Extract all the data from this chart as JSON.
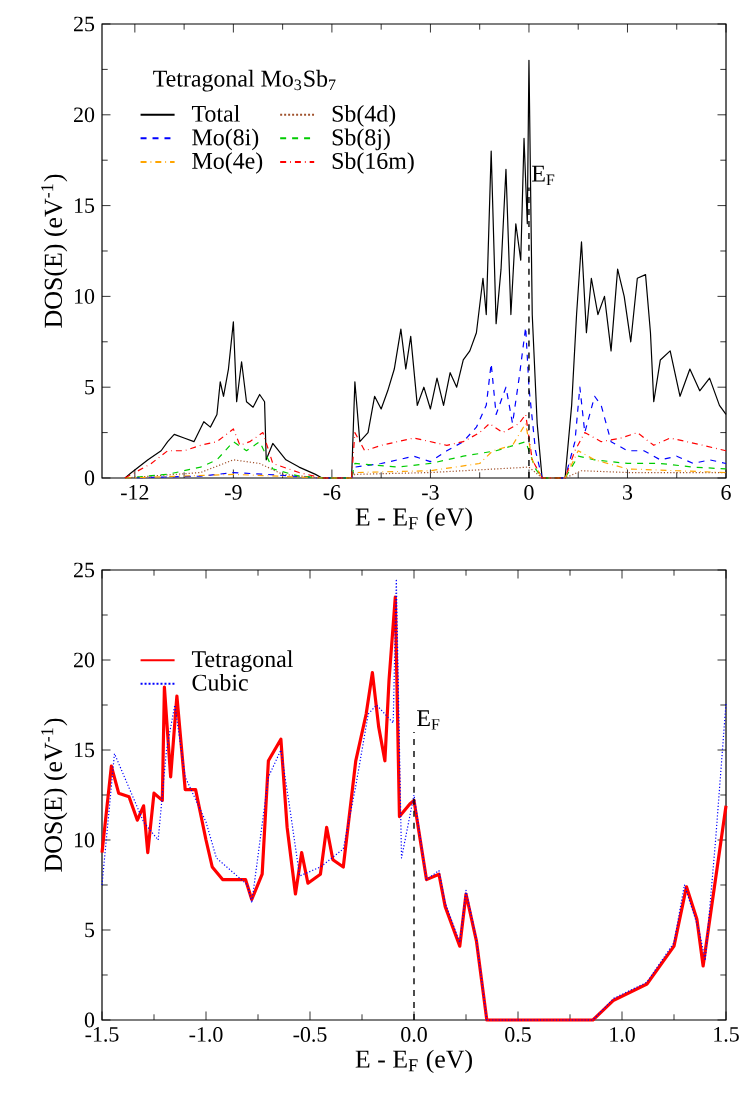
{
  "chart_data": [
    {
      "type": "line",
      "xlabel": "E - E$_{F}$ (eV)",
      "ylabel": "DOS(E) (eV$^{-1}$)",
      "legend_title": "Tetragonal Mo$_{3}$Sb$_{7}$",
      "legend": "top left",
      "xlim": [
        -13,
        6
      ],
      "ylim": [
        0,
        25
      ],
      "xticks": [
        -12,
        -9,
        -6,
        -3,
        0,
        3,
        6
      ],
      "yticks": [
        0,
        5,
        10,
        15,
        20,
        25
      ],
      "ref_lines": [
        {
          "axis": "x",
          "value": 0,
          "label": "E$_{F}$",
          "line_style": "dashed",
          "color": "#000000"
        }
      ],
      "series": [
        {
          "name": "Total",
          "color": "#000000",
          "line_style": "solid",
          "x": [
            -12.3,
            -12.1,
            -11.6,
            -11.2,
            -11.0,
            -10.8,
            -10.5,
            -10.2,
            -9.9,
            -9.7,
            -9.5,
            -9.4,
            -9.3,
            -9.15,
            -9.0,
            -8.9,
            -8.75,
            -8.6,
            -8.4,
            -8.2,
            -8.05,
            -8.0,
            -7.8,
            -7.4,
            -7.0,
            -6.5,
            -6.3,
            -5.4,
            -5.3,
            -5.15,
            -4.9,
            -4.7,
            -4.5,
            -4.3,
            -4.1,
            -3.9,
            -3.75,
            -3.6,
            -3.4,
            -3.2,
            -3.0,
            -2.8,
            -2.6,
            -2.4,
            -2.2,
            -2.0,
            -1.8,
            -1.6,
            -1.4,
            -1.3,
            -1.15,
            -1.0,
            -0.85,
            -0.7,
            -0.55,
            -0.4,
            -0.25,
            -0.15,
            -0.05,
            0.0,
            0.1,
            0.25,
            0.4,
            1.1,
            1.3,
            1.45,
            1.6,
            1.75,
            1.9,
            2.1,
            2.3,
            2.5,
            2.7,
            2.9,
            3.1,
            3.3,
            3.55,
            3.7,
            3.8,
            4.0,
            4.3,
            4.6,
            4.9,
            5.2,
            5.5,
            5.8,
            6.0
          ],
          "values": [
            0,
            0.3,
            1.0,
            1.5,
            2.0,
            2.4,
            2.2,
            2.0,
            3.1,
            2.8,
            3.5,
            5.3,
            4.5,
            6.0,
            8.6,
            4.2,
            6.4,
            4.2,
            3.9,
            4.6,
            4.2,
            1.0,
            1.9,
            1.0,
            0.6,
            0.2,
            0,
            0,
            5.3,
            2.0,
            2.5,
            4.5,
            3.8,
            4.8,
            6.0,
            8.2,
            6.0,
            7.8,
            4.0,
            5.0,
            3.8,
            5.5,
            4.0,
            5.8,
            5.0,
            6.5,
            7.0,
            8.0,
            11.0,
            9.0,
            18.0,
            8.5,
            11.5,
            17.0,
            9.0,
            14.0,
            12.0,
            18.7,
            14.0,
            23.0,
            9.0,
            3.0,
            0,
            0,
            4.0,
            9.0,
            13.0,
            8.0,
            11.0,
            9.0,
            10.0,
            7.0,
            11.5,
            10.0,
            7.5,
            11.0,
            11.2,
            8.0,
            4.2,
            6.5,
            7.0,
            4.5,
            6.0,
            4.8,
            5.5,
            4.0,
            3.5
          ]
        },
        {
          "name": "Sb(4d)",
          "color": "#a0522d",
          "line_style": "dotted",
          "x": [
            -12.3,
            -10,
            -9,
            -8.2,
            -7.5,
            -6.3,
            -5.4,
            -5.3,
            -3,
            -1,
            0,
            0.4,
            1.1,
            1.6,
            3,
            6
          ],
          "values": [
            0,
            0.3,
            1.0,
            0.8,
            0.2,
            0,
            0,
            0.2,
            0.3,
            0.5,
            0.6,
            0,
            0,
            0.4,
            0.3,
            0.3
          ]
        },
        {
          "name": "Mo(8i)",
          "color": "#0000ff",
          "line_style": "dashed",
          "x": [
            -12.3,
            -10,
            -9,
            -8,
            -6.3,
            -5.4,
            -5.3,
            -4.5,
            -4,
            -3.5,
            -3,
            -2.5,
            -2,
            -1.6,
            -1.3,
            -1.15,
            -1.0,
            -0.7,
            -0.5,
            -0.3,
            -0.1,
            0.0,
            0.2,
            0.4,
            1.1,
            1.4,
            1.55,
            1.7,
            2.0,
            2.2,
            2.5,
            3.0,
            3.5,
            4.0,
            4.5,
            5.0,
            5.5,
            6.0
          ],
          "values": [
            0,
            0.1,
            0.3,
            0.2,
            0,
            0,
            0.6,
            0.8,
            1.0,
            1.2,
            0.9,
            1.5,
            2.0,
            2.8,
            4.0,
            6.3,
            3.5,
            5.0,
            3.0,
            5.5,
            8.3,
            5.0,
            1.5,
            0,
            0,
            2.0,
            5.0,
            2.5,
            4.5,
            4.0,
            2.0,
            1.5,
            1.5,
            1.0,
            1.2,
            0.8,
            1.0,
            0.8
          ]
        },
        {
          "name": "Sb(8j)",
          "color": "#00cc00",
          "line_style": "dashed",
          "x": [
            -12.3,
            -11,
            -10,
            -9.5,
            -9,
            -8.6,
            -8.2,
            -7.8,
            -7,
            -6.3,
            -5.4,
            -5.3,
            -4,
            -3,
            -2,
            -1,
            -0.1,
            0.2,
            0.4,
            1.1,
            1.5,
            2,
            3,
            4,
            5,
            6
          ],
          "values": [
            0,
            0.2,
            0.6,
            1.0,
            2.0,
            1.5,
            2.0,
            0.5,
            0.1,
            0,
            0,
            0.8,
            0.6,
            0.8,
            1.2,
            1.5,
            2.0,
            0.5,
            0,
            0,
            1.2,
            1.0,
            0.8,
            0.8,
            0.6,
            0.5
          ]
        },
        {
          "name": "Mo(4e)",
          "color": "#ffa500",
          "line_style": "dashdot",
          "x": [
            -12.3,
            -9,
            -6.3,
            -5.4,
            -5.3,
            -3,
            -1.5,
            -1.1,
            -0.5,
            -0.1,
            0.1,
            0.4,
            1.1,
            1.5,
            2,
            3,
            4.5,
            6
          ],
          "values": [
            0,
            0.2,
            0,
            0,
            0.3,
            0.4,
            0.8,
            1.5,
            1.8,
            3.0,
            1.0,
            0,
            0,
            1.5,
            1.0,
            0.5,
            0.4,
            0.3
          ]
        },
        {
          "name": "Sb(16m)",
          "color": "#ff0000",
          "line_style": "dashdot",
          "x": [
            -12.3,
            -11.5,
            -11,
            -10.5,
            -10,
            -9.5,
            -9.0,
            -8.8,
            -8.5,
            -8.1,
            -7.8,
            -7,
            -6.3,
            -5.4,
            -5.3,
            -5.0,
            -4.5,
            -4,
            -3.5,
            -3,
            -2.5,
            -2,
            -1.5,
            -1.2,
            -0.8,
            -0.3,
            -0.1,
            0.1,
            0.4,
            1.1,
            1.4,
            1.7,
            2.2,
            2.8,
            3.3,
            3.8,
            4.3,
            4.8,
            5.3,
            6.0
          ],
          "values": [
            0,
            0.8,
            1.5,
            1.5,
            1.8,
            2.0,
            2.7,
            1.8,
            2.0,
            2.5,
            0.8,
            0.3,
            0,
            0,
            2.5,
            1.5,
            1.8,
            2.0,
            2.2,
            2.0,
            1.8,
            2.0,
            2.5,
            3.0,
            2.5,
            3.0,
            3.5,
            1.0,
            0,
            0,
            1.5,
            2.5,
            2.0,
            2.2,
            2.5,
            1.8,
            2.2,
            2.0,
            1.8,
            1.5
          ]
        }
      ]
    },
    {
      "type": "line",
      "xlabel": "E - E$_{F}$ (eV)",
      "ylabel": "DOS(E) (eV$^{-1}$)",
      "legend": "top left",
      "xlim": [
        -1.5,
        1.5
      ],
      "ylim": [
        0,
        25
      ],
      "xticks": [
        -1.5,
        {
          "value": -1,
          "label": "-1.0"
        },
        -0.5,
        {
          "value": 0,
          "label": "0.0"
        },
        0.5,
        {
          "value": 1,
          "label": "1.0"
        },
        1.5
      ],
      "yticks": [
        0,
        5,
        10,
        15,
        20,
        25
      ],
      "ref_lines": [
        {
          "axis": "x",
          "value": 0,
          "label": "E$_{F}$",
          "line_style": "dashed",
          "color": "#000000"
        }
      ],
      "series": [
        {
          "name": "Tetragonal",
          "color": "#ff0000",
          "line_style": "solid",
          "x": [
            -1.5,
            -1.455,
            -1.42,
            -1.37,
            -1.33,
            -1.3,
            -1.28,
            -1.25,
            -1.21,
            -1.2,
            -1.17,
            -1.14,
            -1.12,
            -1.1,
            -1.05,
            -1.0,
            -0.97,
            -0.92,
            -0.81,
            -0.78,
            -0.73,
            -0.7,
            -0.64,
            -0.61,
            -0.57,
            -0.54,
            -0.51,
            -0.45,
            -0.42,
            -0.39,
            -0.34,
            -0.28,
            -0.23,
            -0.2,
            -0.17,
            -0.14,
            -0.12,
            -0.09,
            -0.07,
            -0.02,
            0.0,
            0.06,
            0.12,
            0.15,
            0.22,
            0.25,
            0.3,
            0.35,
            0.86,
            0.96,
            1.12,
            1.25,
            1.31,
            1.36,
            1.39,
            1.5
          ],
          "values": [
            9.3,
            14.1,
            12.6,
            12.4,
            11.1,
            11.9,
            9.3,
            12.6,
            12.2,
            18.5,
            13.5,
            18.0,
            15.4,
            12.8,
            12.8,
            10.0,
            8.5,
            7.8,
            7.8,
            6.7,
            8.1,
            14.4,
            15.6,
            10.7,
            7.0,
            9.3,
            7.6,
            8.1,
            10.7,
            8.9,
            8.5,
            14.4,
            17.0,
            19.3,
            16.3,
            14.4,
            18.9,
            23.5,
            11.3,
            12.0,
            12.2,
            7.8,
            8.1,
            6.3,
            4.1,
            7.0,
            4.4,
            0,
            0,
            1.1,
            2.0,
            4.1,
            7.4,
            5.6,
            3.0,
            11.9
          ]
        },
        {
          "name": "Cubic",
          "color": "#0000ff",
          "line_style": "dotted",
          "x": [
            -1.5,
            -1.44,
            -1.3,
            -1.23,
            -1.19,
            -1.15,
            -1.1,
            -1.0,
            -0.95,
            -0.8,
            -0.78,
            -0.7,
            -0.64,
            -0.6,
            -0.55,
            -0.45,
            -0.34,
            -0.28,
            -0.22,
            -0.18,
            -0.1,
            -0.085,
            -0.06,
            0.0,
            0.06,
            0.12,
            0.15,
            0.22,
            0.25,
            0.3,
            0.35,
            0.86,
            0.96,
            1.12,
            1.25,
            1.3,
            1.37,
            1.4,
            1.45,
            1.5
          ],
          "values": [
            7.5,
            14.8,
            11.0,
            10.0,
            15.0,
            17.5,
            13.5,
            11.0,
            9.0,
            7.5,
            6.5,
            13.5,
            15.0,
            12.0,
            8.0,
            8.5,
            9.5,
            13.0,
            17.0,
            17.5,
            16.5,
            24.5,
            9.0,
            12.5,
            7.8,
            8.3,
            6.5,
            4.3,
            7.2,
            4.5,
            0,
            0,
            1.2,
            2.1,
            4.3,
            7.5,
            5.0,
            3.3,
            10.0,
            17.6
          ]
        }
      ]
    }
  ]
}
